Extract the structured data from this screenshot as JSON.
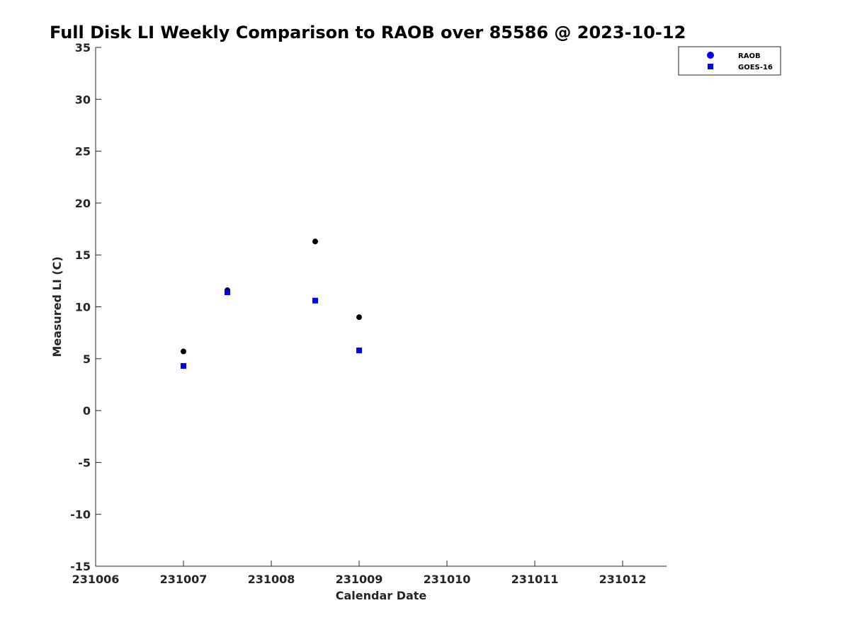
{
  "chart_data": {
    "type": "scatter",
    "title": "Full Disk LI Weekly Comparison to RAOB over 85586 @ 2023-10-12",
    "xlabel": "Calendar Date",
    "ylabel": "Measured LI (C)",
    "xlim": [
      231006,
      231012.5
    ],
    "ylim": [
      -15,
      35
    ],
    "x_ticks": [
      {
        "value": 231006,
        "label": "231006"
      },
      {
        "value": 231007,
        "label": "231007"
      },
      {
        "value": 231008,
        "label": "231008"
      },
      {
        "value": 231009,
        "label": "231009"
      },
      {
        "value": 231010,
        "label": "231010"
      },
      {
        "value": 231011,
        "label": "231011"
      },
      {
        "value": 231012,
        "label": "231012"
      }
    ],
    "y_ticks": [
      {
        "value": 35,
        "label": "35"
      },
      {
        "value": 30,
        "label": "30"
      },
      {
        "value": 25,
        "label": "25"
      },
      {
        "value": 20,
        "label": "20"
      },
      {
        "value": 15,
        "label": "15"
      },
      {
        "value": 10,
        "label": "10"
      },
      {
        "value": 5,
        "label": "5"
      },
      {
        "value": 0,
        "label": "0"
      },
      {
        "value": -5,
        "label": "-5"
      },
      {
        "value": -10,
        "label": "-10"
      },
      {
        "value": -15,
        "label": "-15"
      }
    ],
    "grid": false,
    "legend_position": "top-right outside",
    "series": [
      {
        "name": "RAOB",
        "legend_color": "#0000ff",
        "point_color": "#000000",
        "marker": "circle",
        "points": [
          {
            "x": 231007.0,
            "y": 5.7
          },
          {
            "x": 231007.5,
            "y": 11.6
          },
          {
            "x": 231008.5,
            "y": 16.3
          },
          {
            "x": 231009.0,
            "y": 9.0
          }
        ]
      },
      {
        "name": "GOES-16",
        "legend_color": "#0000ff",
        "point_color": "#0000ff",
        "marker": "square",
        "points": [
          {
            "x": 231007.0,
            "y": 4.3
          },
          {
            "x": 231007.5,
            "y": 11.4
          },
          {
            "x": 231008.5,
            "y": 10.6
          },
          {
            "x": 231009.0,
            "y": 5.8
          }
        ]
      }
    ]
  }
}
